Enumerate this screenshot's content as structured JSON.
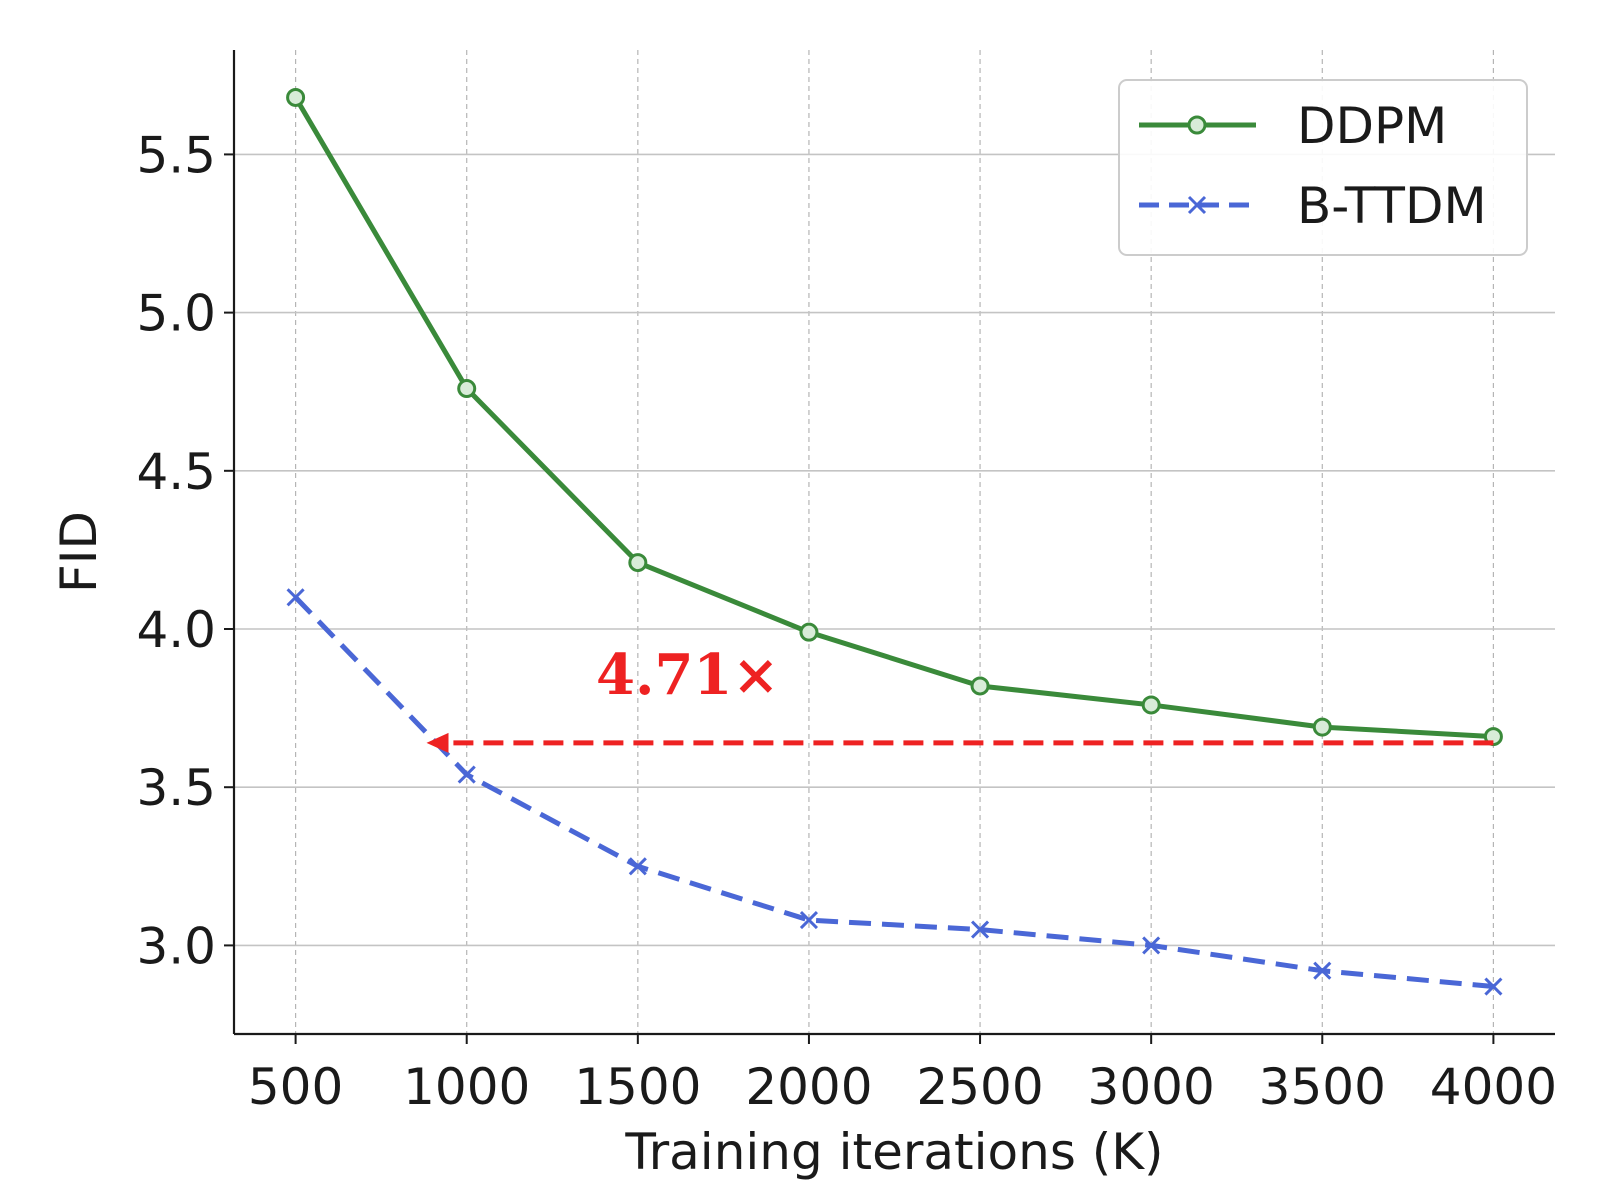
{
  "chart_data": {
    "type": "line",
    "title": "",
    "xlabel": "Training iterations (K)",
    "ylabel": "FID",
    "x": [
      500,
      1000,
      1500,
      2000,
      2500,
      3000,
      3500,
      4000
    ],
    "x_ticks": [
      "500",
      "1000",
      "1500",
      "2000",
      "2500",
      "3000",
      "3500",
      "4000"
    ],
    "y_ticks": [
      "3.0",
      "3.5",
      "4.0",
      "4.5",
      "5.0",
      "5.5"
    ],
    "xlim": [
      320,
      4180
    ],
    "ylim": [
      2.72,
      5.83
    ],
    "grid": true,
    "legend_position": "top-right",
    "series": [
      {
        "name": "DDPM",
        "values": [
          5.68,
          4.76,
          4.21,
          3.99,
          3.82,
          3.76,
          3.69,
          3.66
        ],
        "color": "#3a8a3a",
        "style": "solid",
        "marker": "circle"
      },
      {
        "name": "B-TTDM",
        "values": [
          4.1,
          3.54,
          3.25,
          3.08,
          3.05,
          3.0,
          2.92,
          2.87
        ],
        "color": "#4a67d6",
        "style": "dashed",
        "marker": "x"
      }
    ],
    "annotation": {
      "text": "4.71×",
      "color": "#ee2222",
      "arrow_from": [
        4000,
        3.64
      ],
      "arrow_to": [
        900,
        3.64
      ]
    }
  }
}
